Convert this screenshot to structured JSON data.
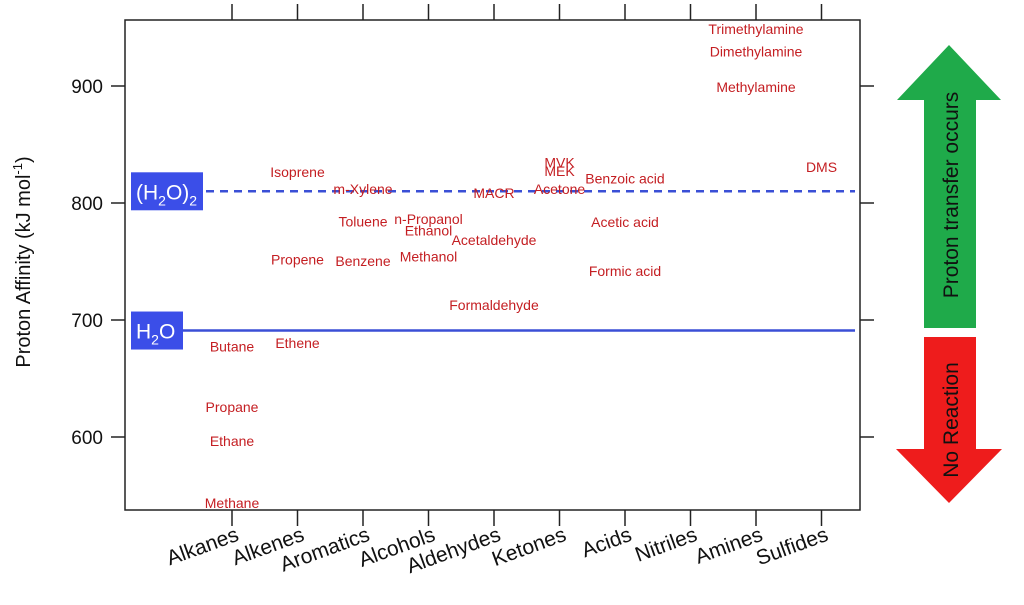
{
  "chart_data": {
    "type": "scatter",
    "title": "",
    "xlabel": "",
    "ylabel": "Proton Affinity (kJ mol",
    "ylabel_sup": "-1",
    "ylabel_close": ")",
    "ylim": [
      535,
      955
    ],
    "yticks": [
      600,
      700,
      800,
      900
    ],
    "categories": [
      "Alkanes",
      "Alkenes",
      "Aromatics",
      "Alcohols",
      "Aldehydes",
      "Ketones",
      "Acids",
      "Nitriles",
      "Amines",
      "Sulfides"
    ],
    "reference_lines": [
      {
        "name": "(H2O)2",
        "value": 810,
        "style": "dashed",
        "label_main": "(H",
        "label_sub": "2",
        "label_mid": "O)",
        "label_sub2": "2"
      },
      {
        "name": "H2O",
        "value": 691,
        "style": "solid",
        "label_main": "H",
        "label_sub": "2",
        "label_mid": "O",
        "label_sub2": ""
      }
    ],
    "points": [
      {
        "label": "Methane",
        "x": 0.5,
        "y": 543.5
      },
      {
        "label": "Ethane",
        "x": 0.5,
        "y": 596.4
      },
      {
        "label": "Propane",
        "x": 0.5,
        "y": 625.7
      },
      {
        "label": "Butane",
        "x": 0.5,
        "y": 677.5
      },
      {
        "label": "Ethene",
        "x": 1.5,
        "y": 680.5
      },
      {
        "label": "Propene",
        "x": 1.5,
        "y": 751.6
      },
      {
        "label": "Isoprene",
        "x": 1.5,
        "y": 826.4
      },
      {
        "label": "m-Xylene",
        "x": 2.5,
        "y": 812
      },
      {
        "label": "Toluene",
        "x": 2.5,
        "y": 784
      },
      {
        "label": "Benzene",
        "x": 2.5,
        "y": 750.4
      },
      {
        "label": "n-Propanol",
        "x": 3.5,
        "y": 786.5
      },
      {
        "label": "Ethanol",
        "x": 3.5,
        "y": 776.4
      },
      {
        "label": "Methanol",
        "x": 3.5,
        "y": 754.3
      },
      {
        "label": "MACR",
        "x": 4.5,
        "y": 808.7
      },
      {
        "label": "Acetaldehyde",
        "x": 4.5,
        "y": 768.5
      },
      {
        "label": "Formaldehyde",
        "x": 4.5,
        "y": 712.9
      },
      {
        "label": "MVK",
        "x": 5.5,
        "y": 834.7
      },
      {
        "label": "MEK",
        "x": 5.5,
        "y": 827.3
      },
      {
        "label": "Acetone",
        "x": 5.5,
        "y": 812
      },
      {
        "label": "Benzoic acid",
        "x": 6.5,
        "y": 821.1
      },
      {
        "label": "Acetic acid",
        "x": 6.5,
        "y": 783.7
      },
      {
        "label": "Formic acid",
        "x": 6.5,
        "y": 742.0
      },
      {
        "label": "Trimethylamine",
        "x": 8.5,
        "y": 948.9
      },
      {
        "label": "Dimethylamine",
        "x": 8.5,
        "y": 929.5
      },
      {
        "label": "Methylamine",
        "x": 8.5,
        "y": 899.0
      },
      {
        "label": "DMS",
        "x": 9.5,
        "y": 830.9
      }
    ],
    "arrows": {
      "up_label": "Proton transfer occurs",
      "down_label": "No Reaction"
    },
    "colors": {
      "point_text": "#c41e22",
      "ref_line": "#3a4fd6",
      "ref_box": "#3b4ee8",
      "up_arrow": "#1faa4a",
      "down_arrow": "#ee1c1c"
    }
  }
}
